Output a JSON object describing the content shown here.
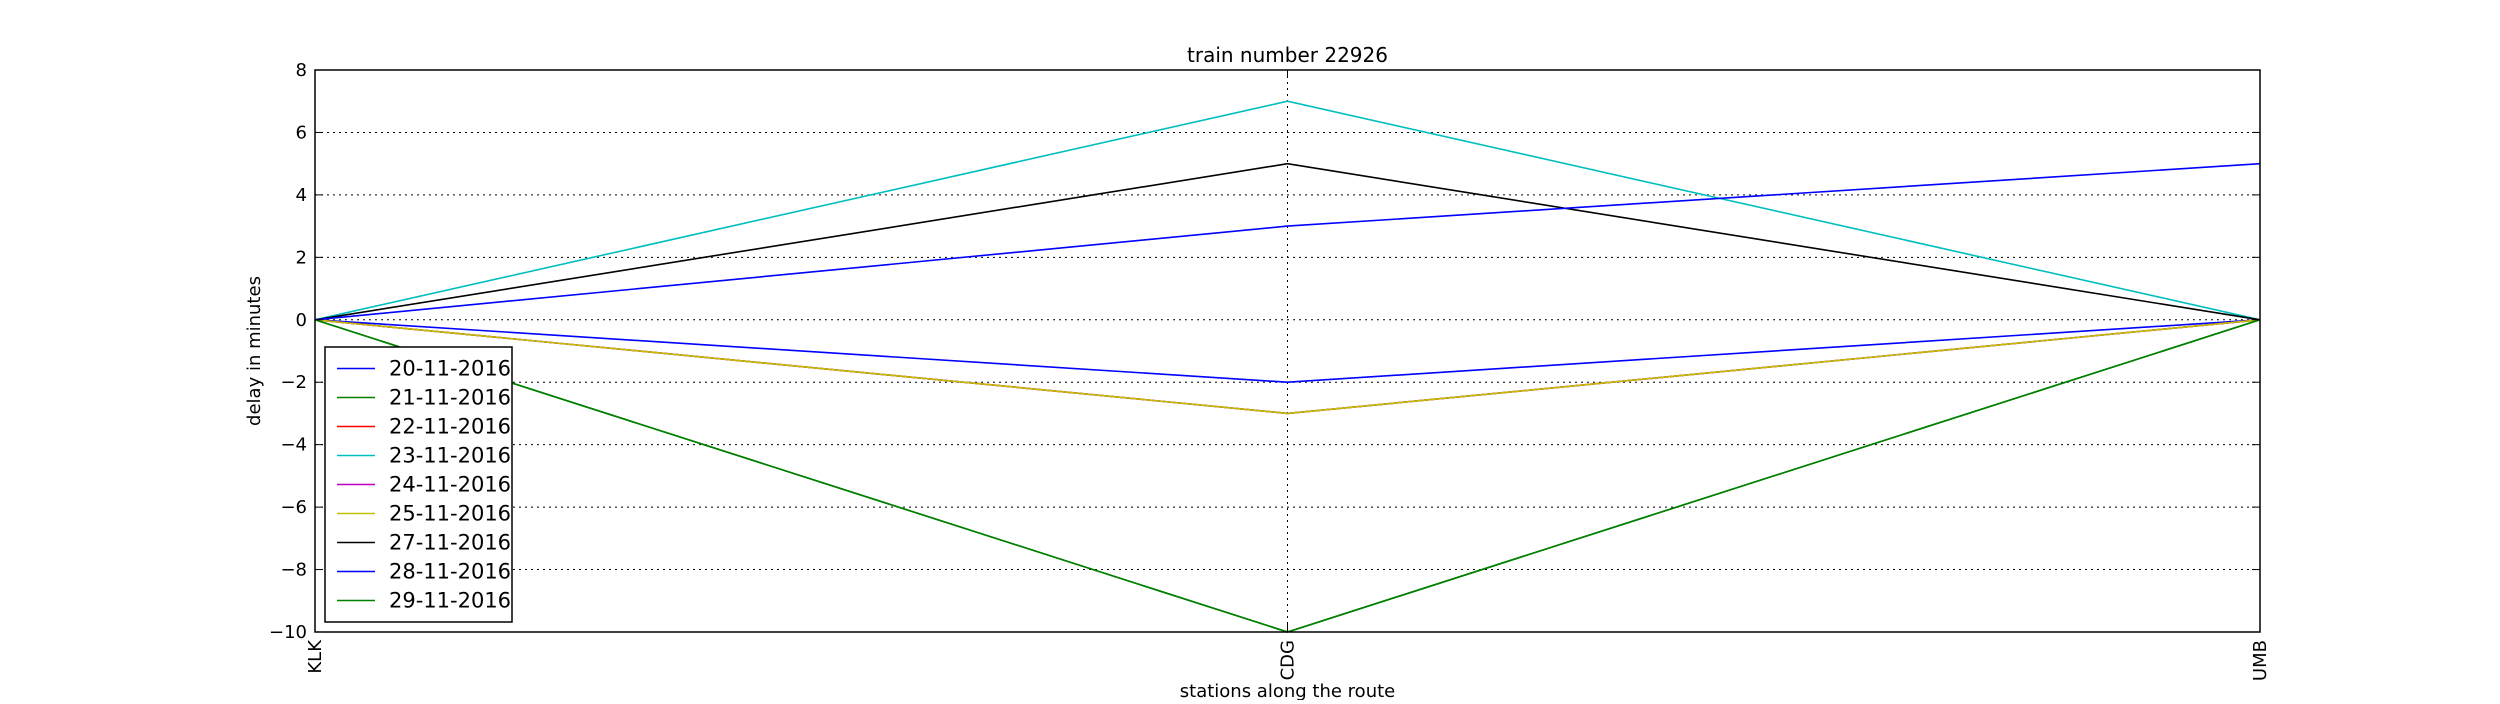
{
  "chart_data": {
    "type": "line",
    "title": "train number 22926",
    "xlabel": "stations along the route",
    "ylabel": "delay in minutes",
    "categories": [
      "KLK",
      "CDG",
      "UMB"
    ],
    "ylim": [
      -10,
      8
    ],
    "yticks": [
      8,
      6,
      4,
      2,
      0,
      -2,
      -4,
      -6,
      -8,
      -10
    ],
    "grid": true,
    "legend_position": "lower-left",
    "series": [
      {
        "name": "20-11-2016",
        "color": "#0000ff",
        "values": [
          0,
          -2,
          0
        ]
      },
      {
        "name": "21-11-2016",
        "color": "#008000",
        "values": [
          0,
          -10,
          0
        ]
      },
      {
        "name": "22-11-2016",
        "color": "#ff0000",
        "values": [
          0,
          -3,
          0
        ]
      },
      {
        "name": "23-11-2016",
        "color": "#00bfbf",
        "values": [
          0,
          7,
          0
        ]
      },
      {
        "name": "24-11-2016",
        "color": "#bf00bf",
        "values": [
          0,
          -3,
          0
        ]
      },
      {
        "name": "25-11-2016",
        "color": "#bfbf00",
        "values": [
          0,
          -3,
          0
        ]
      },
      {
        "name": "27-11-2016",
        "color": "#000000",
        "values": [
          0,
          5,
          0
        ]
      },
      {
        "name": "28-11-2016",
        "color": "#0000ff",
        "values": [
          0,
          3,
          5
        ]
      },
      {
        "name": "29-11-2016",
        "color": "#008000",
        "values": [
          0,
          -10,
          0
        ]
      }
    ]
  }
}
